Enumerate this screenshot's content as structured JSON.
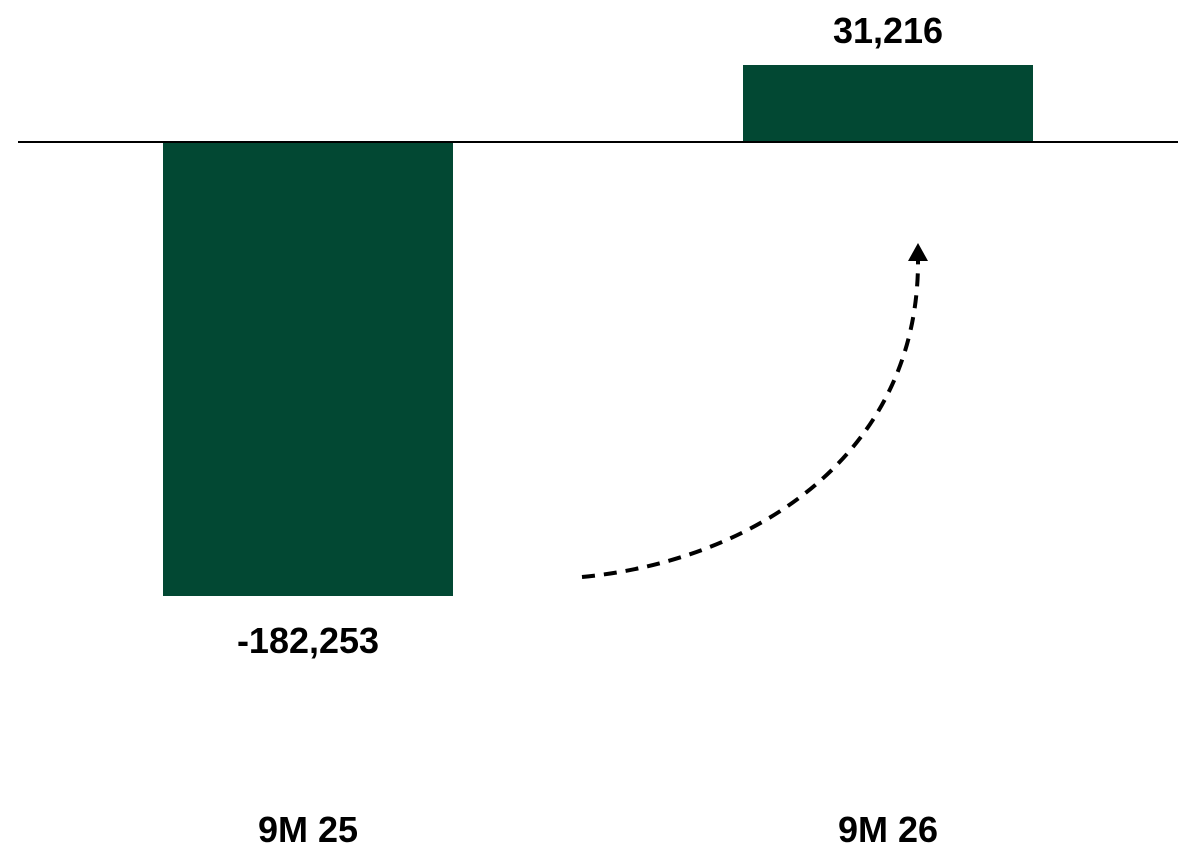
{
  "chart_data": {
    "type": "bar",
    "categories": [
      "9M 25",
      "9M 26"
    ],
    "values": [
      -182253,
      31216
    ],
    "value_labels": [
      "-182,253",
      "31,216"
    ],
    "title": "",
    "xlabel": "",
    "ylabel": "",
    "ylim": [
      -210000,
      45000
    ],
    "grid": false,
    "legend": "none",
    "bar_color": "#024833",
    "axis_color": "#000000",
    "annotation": "dashed curved arrow from the 9M 25 bar toward the 9M 26 bar"
  }
}
